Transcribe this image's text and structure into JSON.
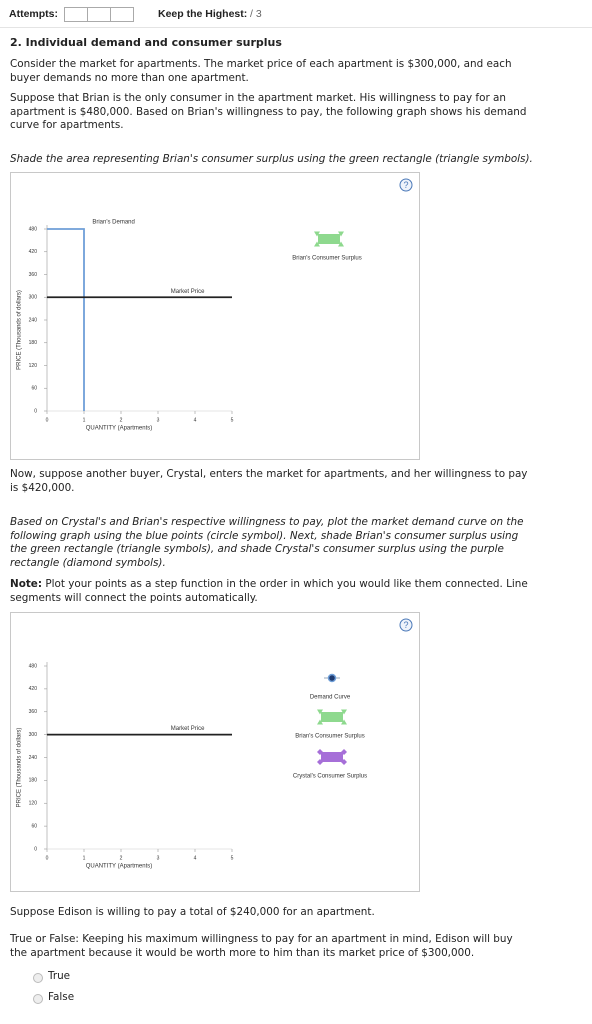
{
  "header": {
    "attempts": "Attempts:",
    "keep_highest": "Keep the Highest:",
    "score": "/ 3"
  },
  "title": "2. Individual demand and consumer surplus",
  "intro": [
    "Consider the market for apartments. The market price of each apartment is $300,000, and each buyer demands no more than one apartment.",
    "Suppose that Brian is the only consumer in the apartment market. His willingness to pay for an apartment is $480,000. Based on Brian's willingness to pay, the following graph shows his demand curve for apartments."
  ],
  "instruction_1": "Shade the area representing Brian's consumer surplus using the green rectangle (triangle symbols).",
  "paragraph_2": "Now, suppose another buyer, Crystal, enters the market for apartments, and her willingness to pay is $420,000.",
  "instruction_2": "Based on Crystal's and Brian's respective willingness to pay, plot the market demand curve on the following graph using the blue points (circle symbol). Next, shade Brian's consumer surplus using the green rectangle (triangle symbols), and shade Crystal's consumer surplus using the purple rectangle (diamond symbols).",
  "note": {
    "label": "Note:",
    "text": "Plot your points as a step function in the order in which you would like them connected. Line segments will connect the points automatically."
  },
  "paragraph_3": "Suppose Edison is willing to pay a total of $240,000 for an apartment.",
  "question": "True or False: Keeping his maximum willingness to pay for an apartment in mind, Edison will buy the apartment because it would be worth more to him than its market price of $300,000.",
  "options": [
    "True",
    "False"
  ],
  "help_label": "?",
  "chart_data": [
    {
      "type": "line",
      "xlabel": "QUANTITY (Apartments)",
      "ylabel": "PRICE (Thousands of dollars)",
      "xlim": [
        0,
        5
      ],
      "xticks": [
        0,
        1,
        2,
        3,
        4,
        5
      ],
      "ylim": [
        0,
        480
      ],
      "yticks": [
        0,
        60,
        120,
        180,
        240,
        300,
        360,
        420,
        480
      ],
      "series": [
        {
          "name": "Brian's Demand",
          "color": "#6f9fd8",
          "x": [
            0,
            1,
            1
          ],
          "values": [
            480,
            480,
            0
          ]
        },
        {
          "name": "Market Price",
          "color": "#222222",
          "x": [
            0,
            5
          ],
          "values": [
            300,
            300
          ]
        }
      ],
      "legend": [
        {
          "name": "Brian's Consumer Surplus",
          "color": "#8ed98e",
          "marker": "triangle"
        }
      ]
    },
    {
      "type": "line",
      "xlabel": "QUANTITY (Apartments)",
      "ylabel": "PRICE (Thousands of dollars)",
      "xlim": [
        0,
        5
      ],
      "xticks": [
        0,
        1,
        2,
        3,
        4,
        5
      ],
      "ylim": [
        0,
        480
      ],
      "yticks": [
        0,
        60,
        120,
        180,
        240,
        300,
        360,
        420,
        480
      ],
      "series": [
        {
          "name": "Market Price",
          "color": "#222222",
          "x": [
            0,
            5
          ],
          "values": [
            300,
            300
          ]
        }
      ],
      "legend": [
        {
          "name": "Demand Curve",
          "color": "#1f3a70",
          "marker": "circle"
        },
        {
          "name": "Brian's Consumer Surplus",
          "color": "#8ed98e",
          "marker": "triangle"
        },
        {
          "name": "Crystal's Consumer Surplus",
          "color": "#a66fd8",
          "marker": "diamond"
        }
      ]
    }
  ]
}
